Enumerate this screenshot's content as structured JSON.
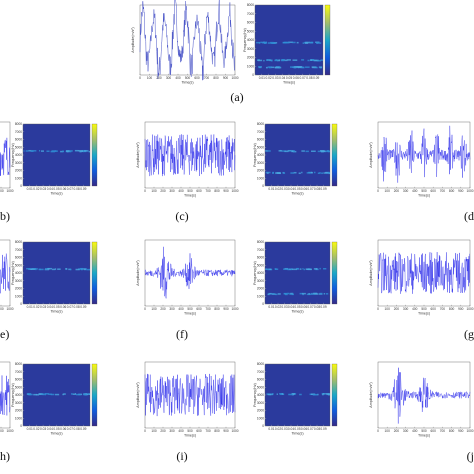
{
  "axis_labels": {
    "time": "Time(s)",
    "amplitude": "Amplitude(m/s²)",
    "frequency": "Frequency(Hz)"
  },
  "signal_xticks": [
    0,
    100,
    200,
    300,
    400,
    500,
    600,
    700,
    800,
    900,
    1000
  ],
  "spec_xticks": [
    0.01,
    0.02,
    0.03,
    0.04,
    0.05,
    0.06,
    0.07,
    0.08,
    0.09
  ],
  "spec_yticks": [
    0,
    1000,
    2000,
    3000,
    4000,
    5000,
    6000,
    7000,
    8000
  ],
  "panel_labels": [
    "(a)",
    "b)",
    "(c)",
    "(d",
    "e)",
    "(f)",
    "(g",
    "h)",
    "(i)",
    "(j"
  ]
}
